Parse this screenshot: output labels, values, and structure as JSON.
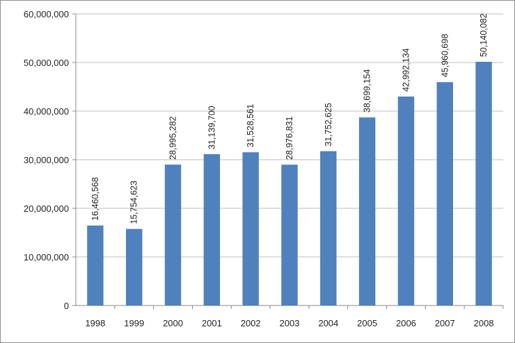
{
  "chart_data": {
    "type": "bar",
    "title": "",
    "xlabel": "",
    "ylabel": "",
    "categories": [
      "1998",
      "1999",
      "2000",
      "2001",
      "2002",
      "2003",
      "2004",
      "2005",
      "2006",
      "2007",
      "2008"
    ],
    "values": [
      16460568,
      15754623,
      28995282,
      31139700,
      31528561,
      28976831,
      31752625,
      38699154,
      42992134,
      45960698,
      50140082
    ],
    "value_labels": [
      "16,460,568",
      "15,754,623",
      "28,995,282",
      "31,139,700",
      "31,528,561",
      "28,976,831",
      "31,752,625",
      "38,699,154",
      "42,992,134",
      "45,960,698",
      "50,140,082"
    ],
    "ylim": [
      0,
      60000000
    ],
    "yticks": [
      0,
      10000000,
      20000000,
      30000000,
      40000000,
      50000000,
      60000000
    ],
    "ytick_labels": [
      "0",
      "10,000,000",
      "20,000,000",
      "30,000,000",
      "40,000,000",
      "50,000,000",
      "60,000,000"
    ],
    "grid": true,
    "legend": "none",
    "bar_color": "#4f81bd",
    "grid_color": "#bfbfbf"
  }
}
